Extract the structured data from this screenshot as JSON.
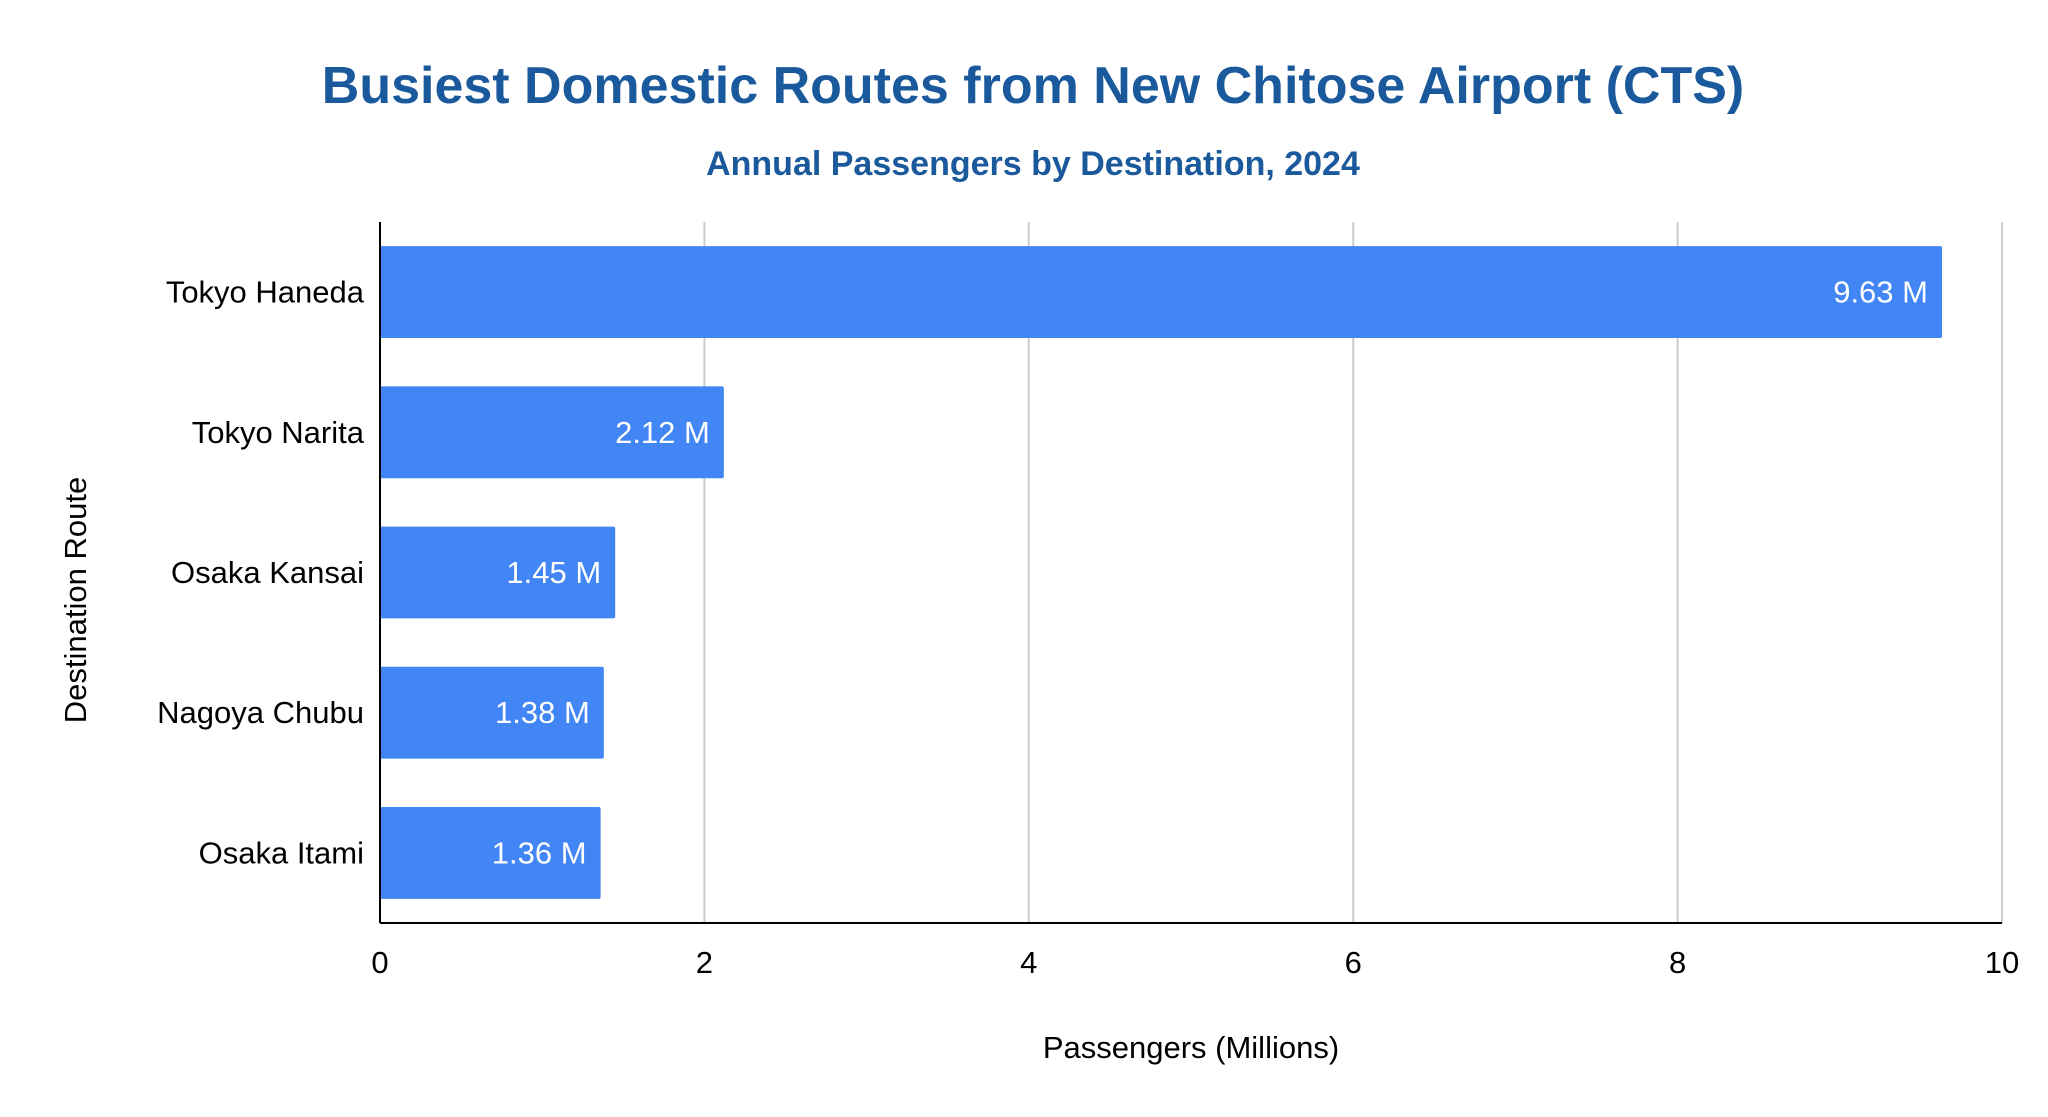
{
  "chart_data": {
    "type": "bar",
    "orientation": "horizontal",
    "title": "Busiest Domestic Routes from New Chitose Airport (CTS)",
    "subtitle": "Annual Passengers by Destination, 2024",
    "xlabel": "Passengers (Millions)",
    "ylabel": "Destination Route",
    "categories": [
      "Tokyo Haneda",
      "Tokyo Narita",
      "Osaka Kansai",
      "Nagoya Chubu",
      "Osaka Itami"
    ],
    "values": [
      9.63,
      2.12,
      1.45,
      1.38,
      1.36
    ],
    "data_labels": [
      "9.63 M",
      "2.12 M",
      "1.45 M",
      "1.38 M",
      "1.36 M"
    ],
    "xlim": [
      0,
      10
    ],
    "x_ticks": [
      0,
      2,
      4,
      6,
      8,
      10
    ],
    "x_tick_labels": [
      "0",
      "2",
      "4",
      "6",
      "8",
      "10"
    ],
    "grid": true,
    "legend": "none",
    "colors": {
      "bar": "#4285f4",
      "title": "#1a5a9c",
      "grid": "#cccccc",
      "axis": "#000000",
      "data_label": "#ffffff",
      "text": "#000000"
    }
  }
}
